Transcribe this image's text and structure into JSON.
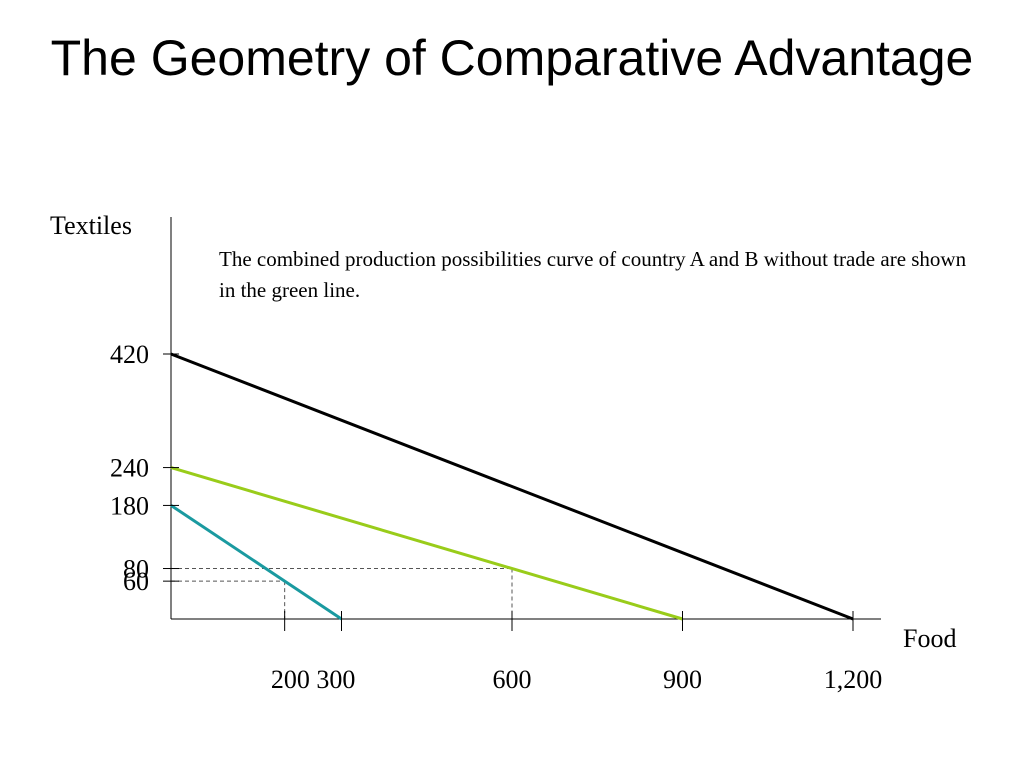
{
  "title": "The Geometry of Comparative Advantage",
  "note": "The combined production possibilities curve of country A and B without trade are shown in the green line.",
  "colors": {
    "black_line": "#000000",
    "green_line": "#99cc1a",
    "teal_line": "#1a9aa0"
  },
  "chart_data": {
    "type": "line",
    "title": "",
    "xlabel": "Food",
    "ylabel": "Textiles",
    "xlim": [
      0,
      1250
    ],
    "ylim": [
      0,
      450
    ],
    "x_ticks": [
      200,
      300,
      600,
      900,
      1200
    ],
    "x_tick_labels": [
      "200",
      "300",
      "600",
      "900",
      "1,200"
    ],
    "x_tick_label_groups": [
      "200 300",
      "600",
      "900",
      "1,200"
    ],
    "y_ticks": [
      420,
      240,
      180,
      80,
      60
    ],
    "y_tick_labels": [
      "420",
      "240",
      "180",
      "80",
      "60"
    ],
    "grid": false,
    "series": [
      {
        "color": "#000000",
        "points": [
          [
            0,
            420
          ],
          [
            1200,
            0
          ]
        ]
      },
      {
        "color": "#99cc1a",
        "points": [
          [
            0,
            240
          ],
          [
            900,
            0
          ]
        ]
      },
      {
        "color": "#1a9aa0",
        "points": [
          [
            0,
            180
          ],
          [
            300,
            0
          ]
        ]
      }
    ],
    "guides": [
      {
        "x": 600,
        "y": 80
      },
      {
        "x": 200,
        "y": 60
      }
    ]
  }
}
